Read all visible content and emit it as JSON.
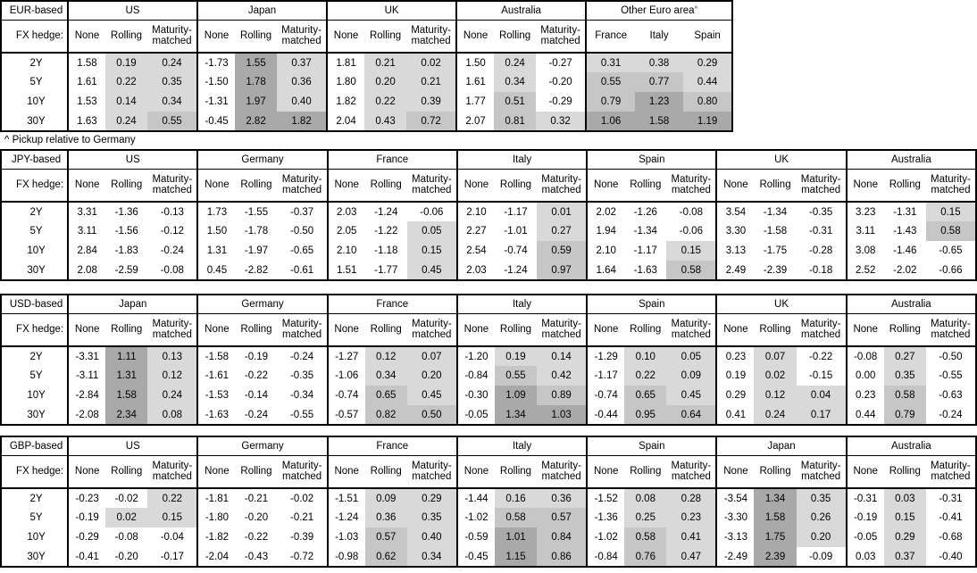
{
  "footnote": "^ Pickup relative to Germany",
  "labels": {
    "fx_hedge": "FX hedge:",
    "tenors": [
      "2Y",
      "5Y",
      "10Y",
      "30Y"
    ],
    "hedge_columns": [
      "None",
      "Rolling",
      "Maturity-matched"
    ]
  },
  "shading": {
    "light": "#d9d9d9",
    "medium": "#c6c6c6",
    "dark": "#a9a9a9",
    "rule": "cell >= 1.0 dark; 0.5 <= cell < 1.0 medium; 0 < cell < 0.5 light; cell <= 0 white; None columns never shaded"
  },
  "tables": [
    {
      "base_label": "EUR-based",
      "width": "narrow",
      "groups": [
        {
          "name": "US",
          "rows": [
            [
              "1.58",
              "0.19",
              "0.24"
            ],
            [
              "1.61",
              "0.22",
              "0.35"
            ],
            [
              "1.53",
              "0.14",
              "0.34"
            ],
            [
              "1.63",
              "0.24",
              "0.55"
            ]
          ]
        },
        {
          "name": "Japan",
          "rows": [
            [
              "-1.73",
              "1.55",
              "0.37"
            ],
            [
              "-1.50",
              "1.78",
              "0.36"
            ],
            [
              "-1.31",
              "1.97",
              "0.40"
            ],
            [
              "-0.45",
              "2.82",
              "1.82"
            ]
          ]
        },
        {
          "name": "UK",
          "rows": [
            [
              "1.81",
              "0.21",
              "0.02"
            ],
            [
              "1.80",
              "0.20",
              "0.21"
            ],
            [
              "1.82",
              "0.22",
              "0.39"
            ],
            [
              "2.04",
              "0.43",
              "0.72"
            ]
          ]
        },
        {
          "name": "Australia",
          "rows": [
            [
              "1.50",
              "0.24",
              "-0.27"
            ],
            [
              "1.61",
              "0.34",
              "-0.20"
            ],
            [
              "1.77",
              "0.51",
              "-0.29"
            ],
            [
              "2.07",
              "0.81",
              "0.32"
            ]
          ]
        },
        {
          "name": "Other Euro area",
          "superscript": "^",
          "columns": [
            "France",
            "Italy",
            "Spain"
          ],
          "shaded_columns": [
            0,
            1,
            2
          ],
          "rows": [
            [
              "0.31",
              "0.38",
              "0.29"
            ],
            [
              "0.55",
              "0.77",
              "0.44"
            ],
            [
              "0.79",
              "1.23",
              "0.80"
            ],
            [
              "1.06",
              "1.58",
              "1.19"
            ]
          ]
        }
      ]
    },
    {
      "base_label": "JPY-based",
      "width": "wide",
      "groups": [
        {
          "name": "US",
          "rows": [
            [
              "3.31",
              "-1.36",
              "-0.13"
            ],
            [
              "3.11",
              "-1.56",
              "-0.12"
            ],
            [
              "2.84",
              "-1.83",
              "-0.24"
            ],
            [
              "2.08",
              "-2.59",
              "-0.08"
            ]
          ]
        },
        {
          "name": "Germany",
          "rows": [
            [
              "1.73",
              "-1.55",
              "-0.37"
            ],
            [
              "1.50",
              "-1.78",
              "-0.50"
            ],
            [
              "1.31",
              "-1.97",
              "-0.65"
            ],
            [
              "0.45",
              "-2.82",
              "-0.61"
            ]
          ]
        },
        {
          "name": "France",
          "rows": [
            [
              "2.03",
              "-1.24",
              "-0.06"
            ],
            [
              "2.05",
              "-1.22",
              "0.05"
            ],
            [
              "2.10",
              "-1.18",
              "0.15"
            ],
            [
              "1.51",
              "-1.77",
              "0.45"
            ]
          ]
        },
        {
          "name": "Italy",
          "rows": [
            [
              "2.10",
              "-1.17",
              "0.01"
            ],
            [
              "2.27",
              "-1.01",
              "0.27"
            ],
            [
              "2.54",
              "-0.74",
              "0.59"
            ],
            [
              "2.03",
              "-1.24",
              "0.97"
            ]
          ]
        },
        {
          "name": "Spain",
          "rows": [
            [
              "2.02",
              "-1.26",
              "-0.08"
            ],
            [
              "1.94",
              "-1.34",
              "-0.06"
            ],
            [
              "2.10",
              "-1.17",
              "0.15"
            ],
            [
              "1.64",
              "-1.63",
              "0.58"
            ]
          ]
        },
        {
          "name": "UK",
          "rows": [
            [
              "3.54",
              "-1.34",
              "-0.35"
            ],
            [
              "3.30",
              "-1.58",
              "-0.31"
            ],
            [
              "3.13",
              "-1.75",
              "-0.28"
            ],
            [
              "2.49",
              "-2.39",
              "-0.18"
            ]
          ]
        },
        {
          "name": "Australia",
          "rows": [
            [
              "3.23",
              "-1.31",
              "0.15"
            ],
            [
              "3.11",
              "-1.43",
              "0.58"
            ],
            [
              "3.08",
              "-1.46",
              "-0.65"
            ],
            [
              "2.52",
              "-2.02",
              "-0.66"
            ]
          ]
        }
      ]
    },
    {
      "base_label": "USD-based",
      "width": "wide",
      "groups": [
        {
          "name": "Japan",
          "rows": [
            [
              "-3.31",
              "1.11",
              "0.13"
            ],
            [
              "-3.11",
              "1.31",
              "0.12"
            ],
            [
              "-2.84",
              "1.58",
              "0.24"
            ],
            [
              "-2.08",
              "2.34",
              "0.08"
            ]
          ]
        },
        {
          "name": "Germany",
          "rows": [
            [
              "-1.58",
              "-0.19",
              "-0.24"
            ],
            [
              "-1.61",
              "-0.22",
              "-0.35"
            ],
            [
              "-1.53",
              "-0.14",
              "-0.34"
            ],
            [
              "-1.63",
              "-0.24",
              "-0.55"
            ]
          ]
        },
        {
          "name": "France",
          "rows": [
            [
              "-1.27",
              "0.12",
              "0.07"
            ],
            [
              "-1.06",
              "0.34",
              "0.20"
            ],
            [
              "-0.74",
              "0.65",
              "0.45"
            ],
            [
              "-0.57",
              "0.82",
              "0.50"
            ]
          ]
        },
        {
          "name": "Italy",
          "rows": [
            [
              "-1.20",
              "0.19",
              "0.14"
            ],
            [
              "-0.84",
              "0.55",
              "0.42"
            ],
            [
              "-0.30",
              "1.09",
              "0.89"
            ],
            [
              "-0.05",
              "1.34",
              "1.03"
            ]
          ]
        },
        {
          "name": "Spain",
          "rows": [
            [
              "-1.29",
              "0.10",
              "0.05"
            ],
            [
              "-1.17",
              "0.22",
              "0.09"
            ],
            [
              "-0.74",
              "0.65",
              "0.45"
            ],
            [
              "-0.44",
              "0.95",
              "0.64"
            ]
          ]
        },
        {
          "name": "UK",
          "rows": [
            [
              "0.23",
              "0.07",
              "-0.22"
            ],
            [
              "0.19",
              "0.02",
              "-0.15"
            ],
            [
              "0.29",
              "0.12",
              "0.04"
            ],
            [
              "0.41",
              "0.24",
              "0.17"
            ]
          ]
        },
        {
          "name": "Australia",
          "rows": [
            [
              "-0.08",
              "0.27",
              "-0.50"
            ],
            [
              "0.00",
              "0.35",
              "-0.55"
            ],
            [
              "0.23",
              "0.58",
              "-0.63"
            ],
            [
              "0.44",
              "0.79",
              "-0.24"
            ]
          ]
        }
      ]
    },
    {
      "base_label": "GBP-based",
      "width": "wide",
      "groups": [
        {
          "name": "US",
          "rows": [
            [
              "-0.23",
              "-0.02",
              "0.22"
            ],
            [
              "-0.19",
              "0.02",
              "0.15"
            ],
            [
              "-0.29",
              "-0.08",
              "-0.04"
            ],
            [
              "-0.41",
              "-0.20",
              "-0.17"
            ]
          ]
        },
        {
          "name": "Germany",
          "rows": [
            [
              "-1.81",
              "-0.21",
              "-0.02"
            ],
            [
              "-1.80",
              "-0.20",
              "-0.21"
            ],
            [
              "-1.82",
              "-0.22",
              "-0.39"
            ],
            [
              "-2.04",
              "-0.43",
              "-0.72"
            ]
          ]
        },
        {
          "name": "France",
          "rows": [
            [
              "-1.51",
              "0.09",
              "0.29"
            ],
            [
              "-1.24",
              "0.36",
              "0.35"
            ],
            [
              "-1.03",
              "0.57",
              "0.40"
            ],
            [
              "-0.98",
              "0.62",
              "0.34"
            ]
          ]
        },
        {
          "name": "Italy",
          "rows": [
            [
              "-1.44",
              "0.16",
              "0.36"
            ],
            [
              "-1.02",
              "0.58",
              "0.57"
            ],
            [
              "-0.59",
              "1.01",
              "0.84"
            ],
            [
              "-0.45",
              "1.15",
              "0.86"
            ]
          ]
        },
        {
          "name": "Spain",
          "rows": [
            [
              "-1.52",
              "0.08",
              "0.28"
            ],
            [
              "-1.36",
              "0.25",
              "0.23"
            ],
            [
              "-1.02",
              "0.58",
              "0.41"
            ],
            [
              "-0.84",
              "0.76",
              "0.47"
            ]
          ]
        },
        {
          "name": "Japan",
          "rows": [
            [
              "-3.54",
              "1.34",
              "0.35"
            ],
            [
              "-3.30",
              "1.58",
              "0.26"
            ],
            [
              "-3.13",
              "1.75",
              "0.20"
            ],
            [
              "-2.49",
              "2.39",
              "-0.09"
            ]
          ]
        },
        {
          "name": "Australia",
          "rows": [
            [
              "-0.31",
              "0.03",
              "-0.31"
            ],
            [
              "-0.19",
              "0.15",
              "-0.41"
            ],
            [
              "-0.05",
              "0.29",
              "-0.68"
            ],
            [
              "0.03",
              "0.37",
              "-0.40"
            ]
          ]
        }
      ]
    }
  ]
}
